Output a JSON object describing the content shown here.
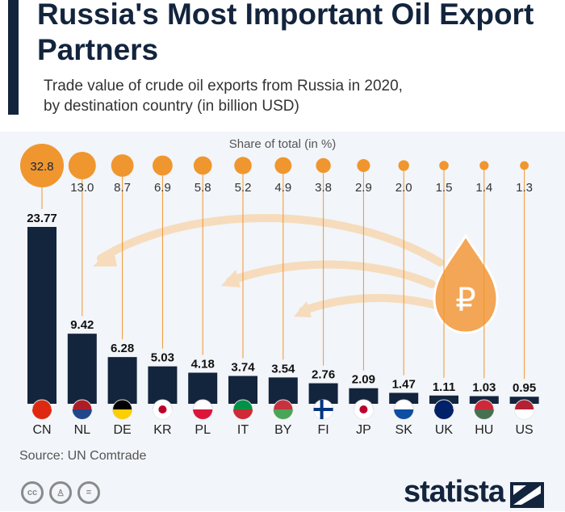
{
  "title": "Russia's Most Important Oil Export Partners",
  "subtitle_line1": "Trade value of crude oil exports from Russia in 2020,",
  "subtitle_line2": "by destination country (in billion USD)",
  "source": "Source: UN Comtrade",
  "brand": "statista",
  "license_icons": [
    "cc",
    "by",
    "nd"
  ],
  "colors": {
    "bar": "#13243d",
    "bubble": "#f0962e",
    "arrow": "#f6dcbc"
  },
  "chart_data": {
    "type": "bar",
    "title": "Russia's Most Important Oil Export Partners",
    "ylabel": "Trade value (billion USD)",
    "share_label": "Share of total (in %)",
    "categories": [
      "CN",
      "NL",
      "DE",
      "KR",
      "PL",
      "IT",
      "BY",
      "FI",
      "JP",
      "SK",
      "UK",
      "HU",
      "US"
    ],
    "values": [
      23.77,
      9.42,
      6.28,
      5.03,
      4.18,
      3.74,
      3.54,
      2.76,
      2.09,
      1.47,
      1.11,
      1.03,
      0.95
    ],
    "value_labels": [
      "23.77",
      "9.42",
      "6.28",
      "5.03",
      "4.18",
      "3.74",
      "3.54",
      "2.76",
      "2.09",
      "1.47",
      "1.11",
      "1.03",
      "0.95"
    ],
    "share": [
      32.8,
      13.0,
      8.7,
      6.9,
      5.8,
      5.2,
      4.9,
      3.8,
      2.9,
      2.0,
      1.5,
      1.4,
      1.3
    ],
    "share_labels": [
      "32.8",
      "13.0",
      "8.7",
      "6.9",
      "5.8",
      "5.2",
      "4.9",
      "3.8",
      "2.9",
      "2.0",
      "1.5",
      "1.4",
      "1.3"
    ],
    "ylim": [
      0,
      25
    ],
    "grid": false
  }
}
